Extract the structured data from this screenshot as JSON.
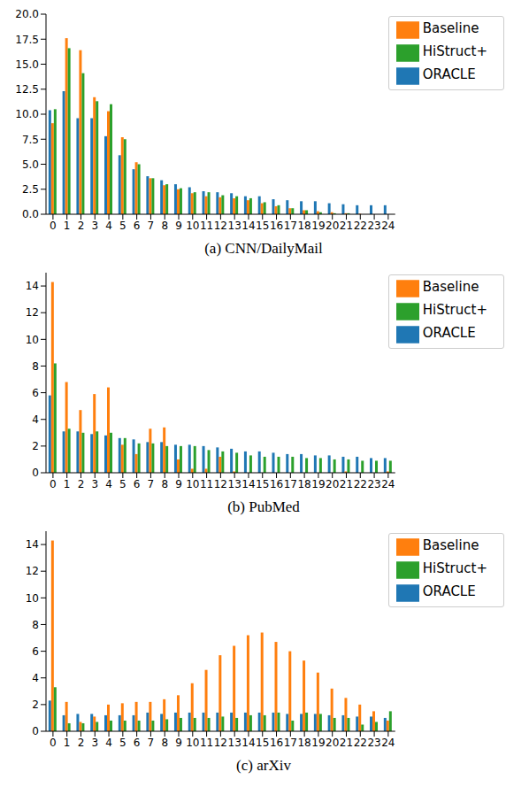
{
  "chart_data": [
    {
      "type": "bar",
      "title": "(a) CNN/DailyMail",
      "categories": [
        "0",
        "1",
        "2",
        "3",
        "4",
        "5",
        "6",
        "7",
        "8",
        "9",
        "10",
        "11",
        "12",
        "13",
        "14",
        "15",
        "16",
        "17",
        "18",
        "19",
        "20",
        "21",
        "22",
        "23",
        "24"
      ],
      "series": [
        {
          "name": "ORACLE",
          "color": "#1f77b4",
          "values": [
            10.4,
            12.3,
            9.6,
            9.6,
            7.8,
            5.9,
            4.5,
            3.8,
            3.4,
            3.0,
            2.7,
            2.3,
            2.2,
            2.1,
            1.8,
            1.8,
            1.5,
            1.4,
            1.3,
            1.3,
            1.1,
            1.0,
            0.9,
            0.9,
            0.9
          ]
        },
        {
          "name": "Baseline",
          "color": "#ff7f0e",
          "values": [
            9.1,
            17.6,
            16.4,
            11.7,
            10.3,
            7.7,
            5.2,
            3.6,
            2.9,
            2.5,
            2.1,
            1.8,
            1.7,
            1.6,
            1.4,
            1.1,
            0.8,
            0.6,
            0.4,
            0.3,
            0.2,
            0.1,
            0.05,
            0,
            0
          ]
        },
        {
          "name": "HiStruct+",
          "color": "#2ca02c",
          "values": [
            10.5,
            16.6,
            14.1,
            11.3,
            11.0,
            7.5,
            5.0,
            3.6,
            3.0,
            2.6,
            2.2,
            2.2,
            1.9,
            1.8,
            1.6,
            1.2,
            0.9,
            0.6,
            0.4,
            0.2,
            0.1,
            0.1,
            0,
            0,
            0
          ]
        }
      ],
      "ylim": [
        0,
        20
      ],
      "yticks": [
        {
          "value": 0,
          "label": "0.0"
        },
        {
          "value": 2.5,
          "label": "2.5"
        },
        {
          "value": 5,
          "label": "5.0"
        },
        {
          "value": 7.5,
          "label": "7.5"
        },
        {
          "value": 10,
          "label": "10.0"
        },
        {
          "value": 12.5,
          "label": "12.5"
        },
        {
          "value": 15,
          "label": "15.0"
        },
        {
          "value": 17.5,
          "label": "17.5"
        },
        {
          "value": 20,
          "label": "20.0"
        }
      ],
      "legend": "upper right"
    },
    {
      "type": "bar",
      "title": "(b) PubMed",
      "categories": [
        "0",
        "1",
        "2",
        "3",
        "4",
        "5",
        "6",
        "7",
        "8",
        "9",
        "10",
        "11",
        "12",
        "13",
        "14",
        "15",
        "16",
        "17",
        "18",
        "19",
        "20",
        "21",
        "22",
        "23",
        "24"
      ],
      "series": [
        {
          "name": "ORACLE",
          "color": "#1f77b4",
          "values": [
            5.8,
            3.1,
            3.1,
            2.9,
            2.8,
            2.6,
            2.5,
            2.3,
            2.3,
            2.1,
            2.1,
            2.0,
            1.9,
            1.8,
            1.6,
            1.6,
            1.5,
            1.4,
            1.4,
            1.3,
            1.3,
            1.2,
            1.2,
            1.1,
            1.1
          ]
        },
        {
          "name": "Baseline",
          "color": "#ff7f0e",
          "values": [
            14.3,
            6.8,
            4.7,
            5.9,
            6.4,
            2.1,
            1.4,
            3.3,
            3.4,
            1.0,
            0.3,
            0.3,
            1.2,
            0.1,
            0,
            0,
            0,
            0,
            0,
            0,
            0,
            0.1,
            0,
            0,
            0.1
          ]
        },
        {
          "name": "HiStruct+",
          "color": "#2ca02c",
          "values": [
            8.2,
            3.3,
            3.0,
            3.1,
            3.0,
            2.6,
            2.2,
            2.2,
            2.0,
            2.0,
            2.0,
            1.7,
            1.6,
            1.5,
            1.3,
            1.2,
            1.2,
            1.2,
            1.1,
            1.1,
            1.0,
            1.0,
            0.9,
            0.9,
            0.9
          ]
        }
      ],
      "ylim": [
        0,
        15
      ],
      "yticks": [
        0,
        2,
        4,
        6,
        8,
        10,
        12,
        14
      ],
      "legend": "upper right"
    },
    {
      "type": "bar",
      "title": "(c) arXiv",
      "categories": [
        "0",
        "1",
        "2",
        "3",
        "4",
        "5",
        "6",
        "7",
        "8",
        "9",
        "10",
        "11",
        "12",
        "13",
        "14",
        "15",
        "16",
        "17",
        "18",
        "19",
        "20",
        "21",
        "22",
        "23",
        "24"
      ],
      "series": [
        {
          "name": "ORACLE",
          "color": "#1f77b4",
          "values": [
            2.3,
            1.2,
            1.3,
            1.3,
            1.2,
            1.2,
            1.2,
            1.4,
            1.3,
            1.4,
            1.4,
            1.4,
            1.4,
            1.4,
            1.4,
            1.4,
            1.4,
            1.3,
            1.3,
            1.3,
            1.2,
            1.2,
            1.1,
            1.1,
            1.0
          ]
        },
        {
          "name": "Baseline",
          "color": "#ff7f0e",
          "values": [
            14.3,
            2.2,
            0.7,
            1.1,
            2.0,
            2.1,
            2.2,
            2.2,
            2.4,
            2.7,
            3.6,
            4.6,
            5.7,
            6.4,
            7.2,
            7.4,
            6.7,
            6.0,
            5.3,
            4.4,
            3.2,
            2.5,
            2.0,
            1.5,
            0.8
          ]
        },
        {
          "name": "HiStruct+",
          "color": "#2ca02c",
          "values": [
            3.3,
            0.6,
            0.6,
            0.7,
            0.8,
            0.8,
            0.8,
            0.8,
            0.9,
            1.0,
            1.0,
            1.0,
            1.1,
            1.0,
            1.2,
            1.2,
            1.4,
            0.8,
            1.4,
            1.3,
            1.0,
            1.0,
            0.5,
            0.7,
            1.5
          ]
        }
      ],
      "ylim": [
        0,
        15
      ],
      "yticks": [
        0,
        2,
        4,
        6,
        8,
        10,
        12,
        14
      ],
      "legend": "upper right"
    }
  ]
}
